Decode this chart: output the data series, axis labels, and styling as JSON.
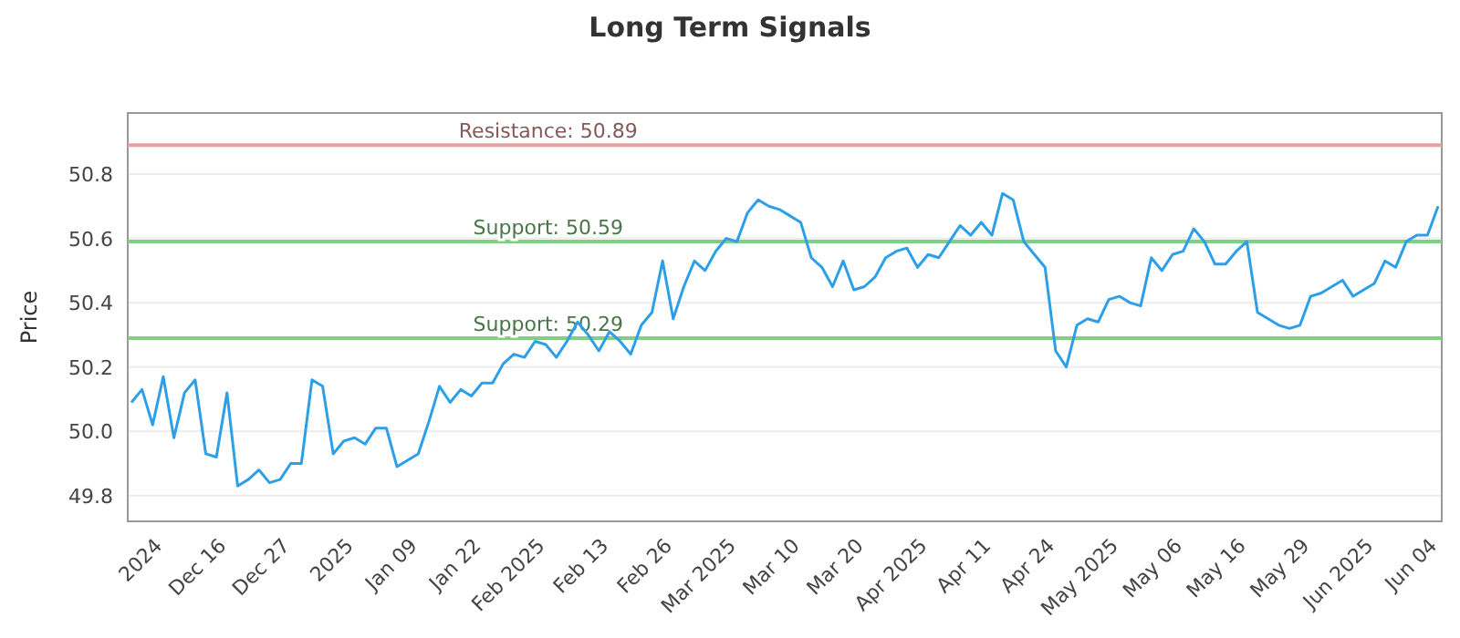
{
  "chart_data": {
    "type": "line",
    "title": "Long Term Signals",
    "ylabel": "Price",
    "categories": [
      null,
      null,
      null,
      "2024",
      null,
      null,
      null,
      null,
      null,
      "Dec 16",
      null,
      null,
      null,
      null,
      null,
      "Dec 27",
      null,
      null,
      null,
      null,
      null,
      "2025",
      null,
      null,
      null,
      null,
      null,
      "Jan 09",
      null,
      null,
      null,
      null,
      null,
      "Jan 22",
      null,
      null,
      null,
      null,
      null,
      "Feb 2025",
      null,
      null,
      null,
      null,
      null,
      "Feb 13",
      null,
      null,
      null,
      null,
      null,
      "Feb 26",
      null,
      null,
      null,
      null,
      null,
      "Mar 2025",
      null,
      null,
      null,
      null,
      null,
      "Mar 10",
      null,
      null,
      null,
      null,
      null,
      "Mar 20",
      null,
      null,
      null,
      null,
      null,
      "Apr 2025",
      null,
      null,
      null,
      null,
      null,
      "Apr 11",
      null,
      null,
      null,
      null,
      null,
      "Apr 24",
      null,
      null,
      null,
      null,
      null,
      "May 2025",
      null,
      null,
      null,
      null,
      null,
      "May 06",
      null,
      null,
      null,
      null,
      null,
      "May 16",
      null,
      null,
      null,
      null,
      null,
      "May 29",
      null,
      null,
      null,
      null,
      null,
      "Jun 2025",
      null,
      null,
      null,
      null,
      null,
      "Jun 04"
    ],
    "series": [
      {
        "color": "#2d9fe8",
        "values": [
          50.09,
          50.13,
          50.02,
          50.17,
          49.98,
          50.12,
          50.16,
          49.93,
          49.92,
          50.12,
          49.83,
          49.85,
          49.88,
          49.84,
          49.85,
          49.9,
          49.9,
          50.16,
          50.14,
          49.93,
          49.97,
          49.98,
          49.96,
          50.01,
          50.01,
          49.89,
          49.91,
          49.93,
          50.03,
          50.14,
          50.09,
          50.13,
          50.11,
          50.15,
          50.15,
          50.21,
          50.24,
          50.23,
          50.28,
          50.27,
          50.23,
          50.28,
          50.34,
          50.3,
          50.25,
          50.31,
          50.28,
          50.24,
          50.33,
          50.37,
          50.53,
          50.35,
          50.45,
          50.53,
          50.5,
          50.56,
          50.6,
          50.59,
          50.68,
          50.72,
          50.7,
          50.69,
          50.67,
          50.65,
          50.54,
          50.51,
          50.45,
          50.53,
          50.44,
          50.45,
          50.48,
          50.54,
          50.56,
          50.57,
          50.51,
          50.55,
          50.54,
          50.59,
          50.64,
          50.61,
          50.65,
          50.61,
          50.74,
          50.72,
          50.59,
          50.55,
          50.51,
          50.25,
          50.2,
          50.33,
          50.35,
          50.34,
          50.41,
          50.42,
          50.4,
          50.39,
          50.54,
          50.5,
          50.55,
          50.56,
          50.63,
          50.59,
          50.52,
          50.52,
          50.56,
          50.59,
          50.37,
          50.35,
          50.33,
          50.32,
          50.33,
          50.42,
          50.43,
          50.45,
          50.47,
          50.42,
          50.44,
          50.46,
          50.53,
          50.51,
          50.59,
          50.61,
          50.61,
          50.7
        ]
      }
    ],
    "ylim": [
      49.72,
      50.99
    ],
    "yticks": [
      49.8,
      {
        "value": 50,
        "label": "50.0"
      },
      50.2,
      50.4,
      50.6,
      50.8
    ],
    "grid": "y",
    "marker": "none",
    "line_style": "solid",
    "ref_lines": [
      {
        "axis": "y",
        "value": 50.89,
        "label": "Resistance: 50.89",
        "color": "#e8a0a0"
      },
      {
        "axis": "y",
        "value": 50.59,
        "label": "Support: 50.59",
        "color": "#7fd07f"
      },
      {
        "axis": "y",
        "value": 50.29,
        "label": "Support: 50.29",
        "color": "#7fd07f"
      }
    ]
  }
}
